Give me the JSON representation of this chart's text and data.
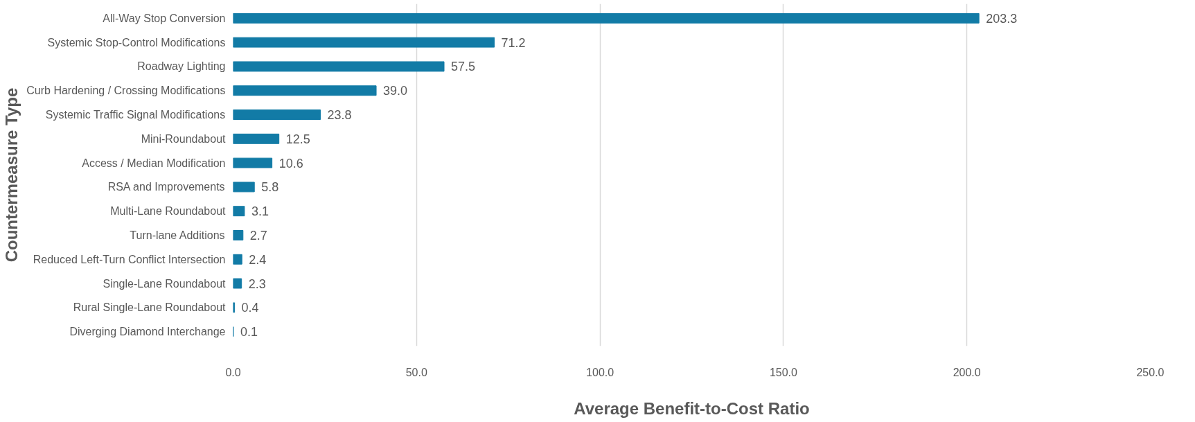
{
  "chart_data": {
    "type": "bar",
    "orientation": "horizontal",
    "xlabel": "Average Benefit-to-Cost Ratio",
    "ylabel": "Countermeasure Type",
    "categories": [
      "All-Way Stop Conversion",
      "Systemic Stop-Control Modifications",
      "Roadway Lighting",
      "Curb Hardening / Crossing Modifications",
      "Systemic Traffic Signal Modifications",
      "Mini-Roundabout",
      "Access / Median Modification",
      "RSA and Improvements",
      "Multi-Lane Roundabout",
      "Turn-lane Additions",
      "Reduced Left-Turn Conflict Intersection",
      "Single-Lane Roundabout",
      "Rural Single-Lane Roundabout",
      "Diverging Diamond Interchange"
    ],
    "values": [
      203.3,
      71.2,
      57.5,
      39.0,
      23.8,
      12.5,
      10.6,
      5.8,
      3.1,
      2.7,
      2.4,
      2.3,
      0.4,
      0.1
    ],
    "value_labels": [
      "203.3",
      "71.2",
      "57.5",
      "39.0",
      "23.8",
      "12.5",
      "10.6",
      "5.8",
      "3.1",
      "2.7",
      "2.4",
      "2.3",
      "0.4",
      "0.1"
    ],
    "color": "#127ba6",
    "xlim": [
      0,
      250
    ],
    "xticks": [
      {
        "value": 0,
        "label": "0.0"
      },
      {
        "value": 50,
        "label": "50.0"
      },
      {
        "value": 100,
        "label": "100.0"
      },
      {
        "value": 150,
        "label": "150.0"
      },
      {
        "value": 200,
        "label": "200.0"
      },
      {
        "value": 250,
        "label": "250.0"
      }
    ],
    "grid": "x"
  }
}
